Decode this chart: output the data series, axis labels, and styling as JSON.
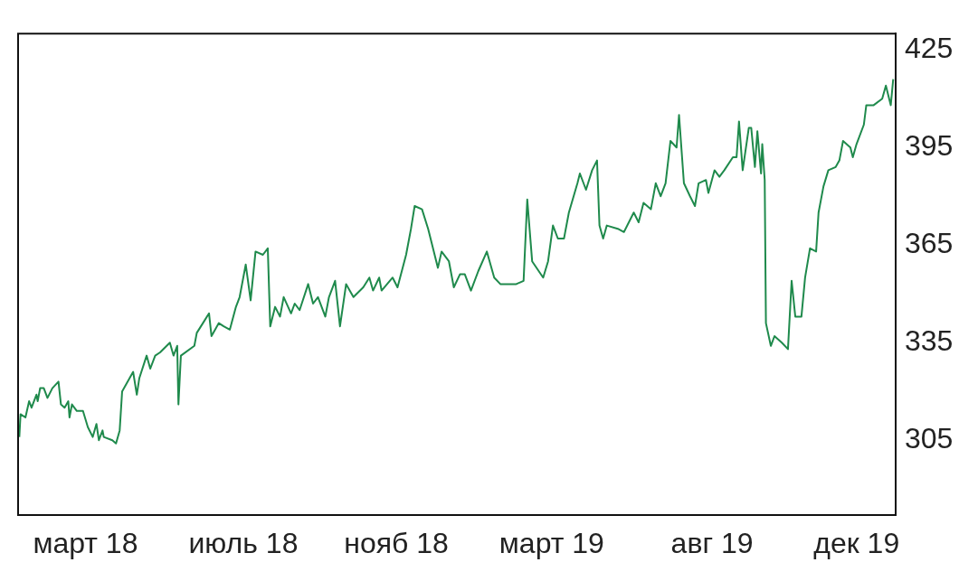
{
  "chart_data": {
    "type": "line",
    "color": "#1f8a4c",
    "x": [
      "2018-01-16",
      "2018-01-17",
      "2018-01-21",
      "2018-01-24",
      "2018-01-26",
      "2018-01-30",
      "2018-01-31",
      "2018-02-02",
      "2018-02-05",
      "2018-02-08",
      "2018-02-12",
      "2018-02-17",
      "2018-02-19",
      "2018-02-22",
      "2018-02-25",
      "2018-02-26",
      "2018-02-28",
      "2018-03-04",
      "2018-03-09",
      "2018-03-13",
      "2018-03-17",
      "2018-03-20",
      "2018-03-22",
      "2018-03-25",
      "2018-03-26",
      "2018-04-02",
      "2018-04-05",
      "2018-04-08",
      "2018-04-10",
      "2018-04-13",
      "2018-04-19",
      "2018-04-22",
      "2018-04-24",
      "2018-04-30",
      "2018-05-03",
      "2018-05-07",
      "2018-05-11",
      "2018-05-19",
      "2018-05-22",
      "2018-05-25",
      "2018-05-26",
      "2018-05-28",
      "2018-06-08",
      "2018-06-10",
      "2018-06-15",
      "2018-06-20",
      "2018-06-22",
      "2018-06-28",
      "2018-07-02",
      "2018-07-07",
      "2018-07-12",
      "2018-07-15",
      "2018-07-20",
      "2018-07-24",
      "2018-07-28",
      "2018-08-03",
      "2018-08-07",
      "2018-08-09",
      "2018-08-13",
      "2018-08-17",
      "2018-08-20",
      "2018-08-26",
      "2018-08-29",
      "2018-09-02",
      "2018-09-09",
      "2018-09-13",
      "2018-09-17",
      "2018-09-23",
      "2018-09-26",
      "2018-10-01",
      "2018-10-05",
      "2018-10-10",
      "2018-10-16",
      "2018-10-24",
      "2018-10-29",
      "2018-11-01",
      "2018-11-06",
      "2018-11-08",
      "2018-11-17",
      "2018-11-21",
      "2018-11-28",
      "2018-12-02",
      "2018-12-05",
      "2018-12-11",
      "2018-12-16",
      "2018-12-24",
      "2018-12-27",
      "2019-01-02",
      "2019-01-06",
      "2019-01-11",
      "2019-01-15",
      "2019-01-20",
      "2019-01-26",
      "2019-02-02",
      "2019-02-08",
      "2019-02-13",
      "2019-02-26",
      "2019-03-04",
      "2019-03-07",
      "2019-03-11",
      "2019-03-20",
      "2019-03-24",
      "2019-03-28",
      "2019-04-01",
      "2019-04-06",
      "2019-04-10",
      "2019-04-17",
      "2019-04-19",
      "2019-04-24",
      "2019-04-29",
      "2019-05-03",
      "2019-05-05",
      "2019-05-08",
      "2019-05-11",
      "2019-05-20",
      "2019-05-25",
      "2019-06-02",
      "2019-06-06",
      "2019-06-10",
      "2019-06-16",
      "2019-06-20",
      "2019-06-24",
      "2019-06-28",
      "2019-07-02",
      "2019-07-07",
      "2019-07-09",
      "2019-07-13",
      "2019-07-18",
      "2019-07-22",
      "2019-07-25",
      "2019-07-31",
      "2019-08-02",
      "2019-08-07",
      "2019-08-11",
      "2019-08-15",
      "2019-08-22",
      "2019-08-25",
      "2019-08-27",
      "2019-08-30",
      "2019-09-04",
      "2019-09-06",
      "2019-09-09",
      "2019-09-11",
      "2019-09-14",
      "2019-09-15",
      "2019-09-17",
      "2019-09-18",
      "2019-09-22",
      "2019-09-25",
      "2019-10-01",
      "2019-10-06",
      "2019-10-09",
      "2019-10-12",
      "2019-10-17",
      "2019-10-20",
      "2019-10-24",
      "2019-10-29",
      "2019-10-31",
      "2019-11-04",
      "2019-11-08",
      "2019-11-14",
      "2019-11-17",
      "2019-11-20",
      "2019-11-26",
      "2019-11-28",
      "2019-12-01",
      "2019-12-07",
      "2019-12-09",
      "2019-12-15",
      "2019-12-22",
      "2019-12-25",
      "2019-12-29",
      "2019-12-31"
    ],
    "values": [
      306,
      313,
      312,
      317,
      315,
      319,
      317,
      321,
      321,
      318,
      321,
      323,
      316,
      315,
      317,
      312,
      316,
      314,
      314,
      309,
      306,
      310,
      305,
      308,
      306,
      305,
      304,
      308,
      320,
      322,
      326,
      319,
      324,
      331,
      327,
      331,
      332,
      335,
      331,
      334,
      316,
      331,
      334,
      338,
      341,
      344,
      337,
      341,
      340,
      339,
      346,
      349,
      359,
      348,
      363,
      362,
      364,
      340,
      346,
      343,
      349,
      344,
      347,
      345,
      353,
      347,
      349,
      343,
      349,
      354,
      340,
      353,
      349,
      352,
      355,
      351,
      355,
      351,
      355,
      352,
      362,
      370,
      377,
      376,
      370,
      358,
      363,
      360,
      352,
      356,
      356,
      351,
      357,
      363,
      355,
      353,
      353,
      354,
      379,
      360,
      355,
      360,
      371,
      367,
      367,
      375,
      384,
      387,
      382,
      388,
      391,
      371,
      367,
      371,
      370,
      369,
      375,
      372,
      378,
      376,
      384,
      380,
      384,
      397,
      395,
      405,
      384,
      380,
      377,
      384,
      385,
      381,
      388,
      386,
      388,
      392,
      392,
      403,
      388,
      401,
      401,
      389,
      400,
      387,
      396,
      385,
      341,
      334,
      337,
      335,
      333,
      354,
      343,
      343,
      355,
      364,
      363,
      375,
      383,
      388,
      389,
      391,
      397,
      395,
      392,
      396,
      402,
      408,
      408,
      410,
      414,
      408,
      416
    ],
    "xlim": [
      "2018-01-15",
      "2020-01-02"
    ],
    "xticks": [
      {
        "value": "2018-03-11",
        "label": "март 18"
      },
      {
        "value": "2018-07-18",
        "label": "июль 18"
      },
      {
        "value": "2018-11-20",
        "label": "нояб 18"
      },
      {
        "value": "2019-03-27",
        "label": "март 19"
      },
      {
        "value": "2019-08-05",
        "label": "авг 19"
      },
      {
        "value": "2019-12-01",
        "label": "дек 19"
      }
    ],
    "ylim": [
      282,
      430
    ],
    "yticks": [
      305,
      335,
      365,
      395,
      425
    ]
  }
}
